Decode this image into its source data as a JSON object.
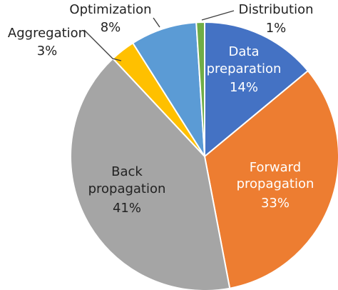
{
  "chart_data": {
    "type": "pie",
    "slices": [
      {
        "name": "Data preparation",
        "value": 14,
        "label": "14%",
        "color": "#4472C4",
        "label_color": "#ffffff"
      },
      {
        "name": "Forward propagation",
        "value": 33,
        "label": "33%",
        "color": "#ED7D31",
        "label_color": "#ffffff"
      },
      {
        "name": "Back propagation",
        "value": 41,
        "label": "41%",
        "color": "#A5A5A5",
        "label_color": "#222222"
      },
      {
        "name": "Aggregation",
        "value": 3,
        "label": "3%",
        "color": "#FFC000",
        "label_color": "#222222"
      },
      {
        "name": "Optimization",
        "value": 8,
        "label": "8%",
        "color": "#5B9BD5",
        "label_color": "#222222"
      },
      {
        "name": "Distribution",
        "value": 1,
        "label": "1%",
        "color": "#70AD47",
        "label_color": "#222222"
      }
    ],
    "labels": {
      "data_preparation": {
        "line1": "Data",
        "line2": "preparation",
        "pct": "14%"
      },
      "forward_propagation": {
        "line1": "Forward",
        "line2": "propagation",
        "pct": "33%"
      },
      "back_propagation": {
        "line1": "Back",
        "line2": "propagation",
        "pct": "41%"
      },
      "aggregation": {
        "line1": "Aggregation",
        "pct": "3%"
      },
      "optimization": {
        "line1": "Optimization",
        "pct": "8%"
      },
      "distribution": {
        "line1": "Distribution",
        "pct": "1%"
      }
    }
  }
}
